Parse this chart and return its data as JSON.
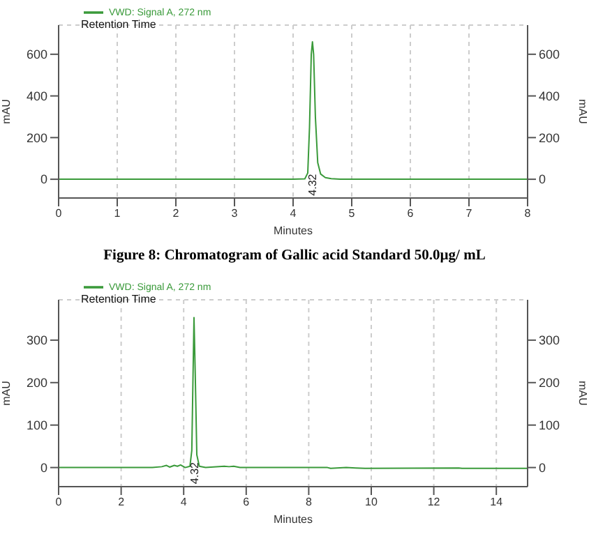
{
  "chart_data": [
    {
      "type": "line",
      "xlabel": "Minutes",
      "ylabel": "mAU",
      "y2label": "mAU",
      "annotations": [
        "Retention Time",
        "Figure 8: Chromatogram of Gallic acid Standard 50.0µg/ mL",
        {
          "text": "4.32",
          "x": 4.32,
          "y": 0
        }
      ],
      "series": [
        {
          "name": "VWD: Signal A, 272 nm",
          "color": "#3a9a3a",
          "x": [
            0,
            4.0,
            4.2,
            4.25,
            4.28,
            4.31,
            4.33,
            4.35,
            4.38,
            4.42,
            4.47,
            4.55,
            4.65,
            4.8,
            5,
            8
          ],
          "values": [
            0,
            0,
            2,
            30,
            250,
            600,
            660,
            600,
            300,
            80,
            25,
            8,
            3,
            0,
            0,
            0
          ]
        }
      ],
      "xlim": [
        0,
        8
      ],
      "xticks": [
        0,
        1,
        2,
        3,
        4,
        5,
        6,
        7,
        8
      ],
      "ylim": [
        -90,
        740
      ],
      "yticks": [
        0,
        200,
        400,
        600
      ],
      "y2lim": [
        -90,
        740
      ],
      "y2ticks": [
        0,
        200,
        400,
        600
      ],
      "grid": true,
      "legend": "top left",
      "marker": "none",
      "line_style": "solid"
    },
    {
      "type": "line",
      "xlabel": "Minutes",
      "ylabel": "mAU",
      "y2label": "mAU",
      "annotations": [
        "Retention Time",
        {
          "text": "4.32",
          "x": 4.32,
          "y": 0
        }
      ],
      "series": [
        {
          "name": "VWD: Signal A, 272 nm",
          "color": "#3a9a3a",
          "x": [
            0,
            3.0,
            3.3,
            3.45,
            3.55,
            3.7,
            3.8,
            3.9,
            4.05,
            4.2,
            4.26,
            4.3,
            4.33,
            4.37,
            4.42,
            4.5,
            4.7,
            5.3,
            5.45,
            5.6,
            5.8,
            8.6,
            8.7,
            9.2,
            9.5,
            9.8,
            12.8,
            12.9,
            15
          ],
          "values": [
            0,
            0,
            2,
            5,
            1,
            5,
            3,
            6,
            0,
            3,
            40,
            220,
            353,
            220,
            30,
            3,
            0,
            3,
            2,
            3,
            0,
            0,
            -2,
            0,
            -1,
            -2,
            -1,
            -2,
            -2
          ]
        }
      ],
      "xlim": [
        0,
        15
      ],
      "xticks": [
        0,
        2,
        4,
        6,
        8,
        10,
        12,
        14
      ],
      "ylim": [
        -45,
        395
      ],
      "yticks": [
        0,
        100,
        200,
        300
      ],
      "y2lim": [
        -45,
        395
      ],
      "y2ticks": [
        0,
        100,
        200,
        300
      ],
      "grid": true,
      "legend": "top left",
      "marker": "none",
      "line_style": "solid"
    }
  ]
}
